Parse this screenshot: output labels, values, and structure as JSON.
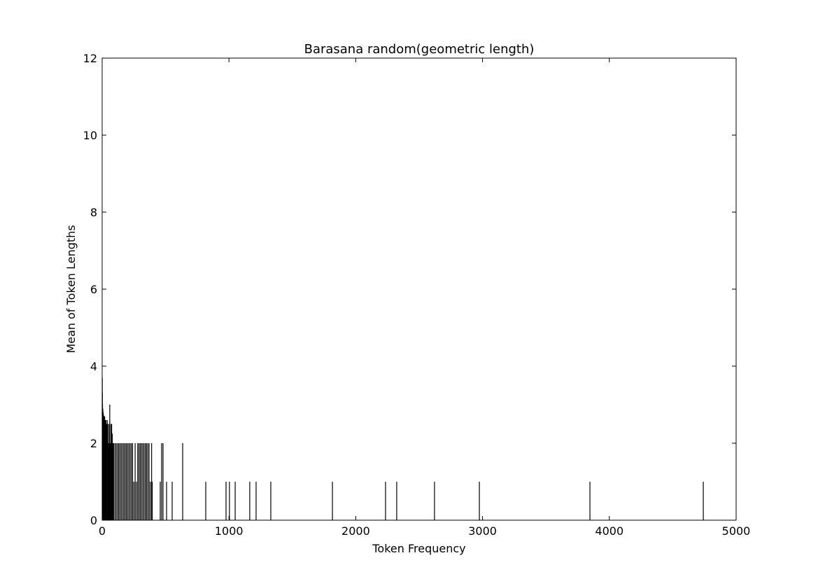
{
  "chart_data": {
    "type": "bar",
    "title": "Barasana random(geometric length)",
    "xlabel": "Token Frequency",
    "ylabel": "Mean of Token Lengths",
    "color": "#000000",
    "x": [
      1,
      2,
      3,
      4,
      5,
      6,
      8,
      10,
      12,
      15,
      18,
      20,
      25,
      28,
      30,
      35,
      40,
      45,
      50,
      55,
      60,
      65,
      70,
      75,
      80,
      85,
      90,
      100,
      110,
      120,
      130,
      140,
      150,
      160,
      170,
      180,
      190,
      200,
      210,
      220,
      230,
      240,
      250,
      260,
      270,
      280,
      290,
      300,
      310,
      320,
      330,
      340,
      350,
      360,
      370,
      380,
      390,
      395,
      458,
      469,
      480,
      508,
      552,
      635,
      817,
      977,
      1004,
      1049,
      1164,
      1214,
      1330,
      1816,
      2235,
      2323,
      2621,
      2975,
      3847,
      4741
    ],
    "values": [
      3.7,
      3.3,
      3.0,
      2.9,
      2.9,
      2.85,
      2.8,
      2.75,
      2.7,
      2.7,
      2.6,
      2.7,
      2.6,
      2.5,
      2.6,
      2.5,
      2.6,
      2.5,
      2.0,
      2.5,
      3.0,
      2.0,
      2.5,
      2.5,
      2.25,
      2.0,
      2.0,
      2.0,
      2.0,
      2.0,
      2.0,
      2.0,
      2.0,
      2.0,
      2.0,
      2.0,
      2.0,
      2.0,
      2.0,
      2.0,
      2.0,
      2.0,
      1.0,
      2.0,
      1.0,
      2.0,
      2.0,
      2.0,
      2.0,
      2.0,
      2.0,
      2.0,
      2.0,
      2.0,
      2.0,
      1.0,
      2.0,
      1.0,
      1.0,
      2.0,
      2.0,
      1.0,
      1.0,
      2.0,
      1.0,
      1.0,
      1.0,
      1.0,
      1.0,
      1.0,
      1.0,
      1.0,
      1.0,
      1.0,
      1.0,
      1.0,
      1.0,
      1.0
    ],
    "xlim": [
      0,
      5000
    ],
    "xticks": [
      0,
      1000,
      2000,
      3000,
      4000,
      5000
    ],
    "ylim": [
      0,
      12
    ],
    "yticks": [
      0,
      2,
      4,
      6,
      8,
      10,
      12
    ]
  }
}
